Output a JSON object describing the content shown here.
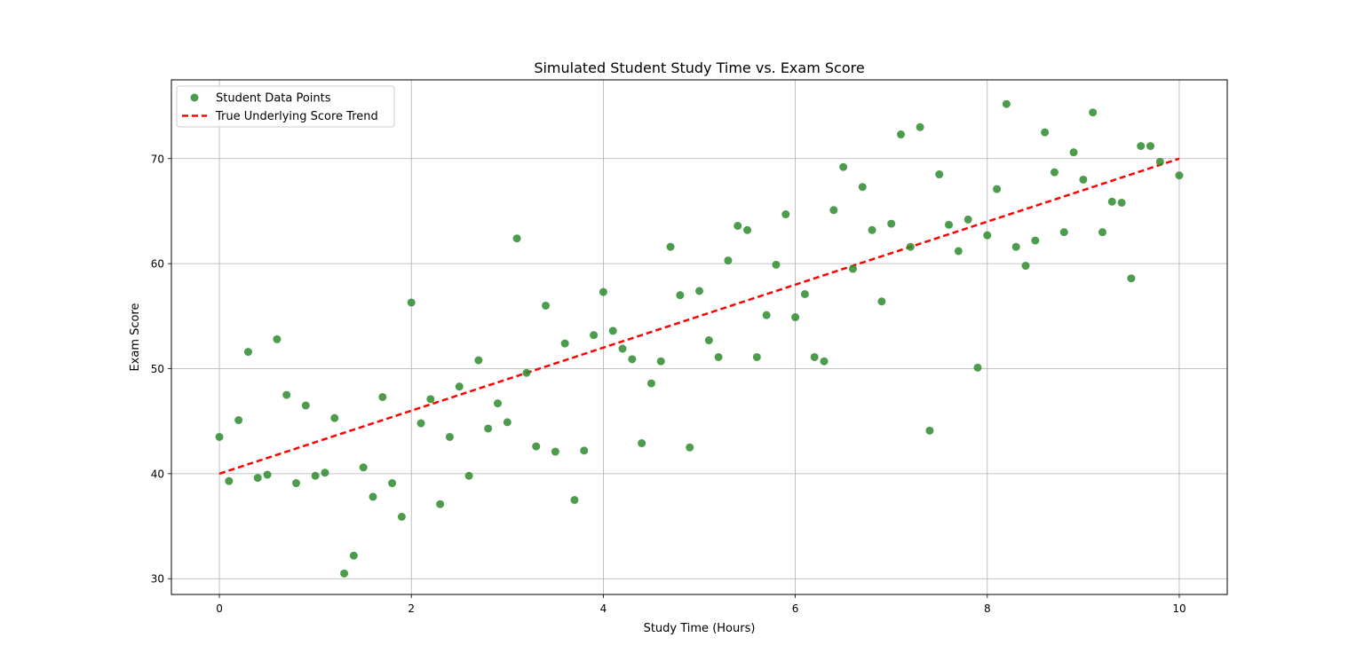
{
  "chart_data": {
    "type": "scatter",
    "title": "Simulated Student Study Time vs. Exam Score",
    "xlabel": "Study Time (Hours)",
    "ylabel": "Exam Score",
    "xlim": [
      -0.5,
      10.5
    ],
    "ylim": [
      28.5,
      77.5
    ],
    "xticks": [
      0,
      2,
      4,
      6,
      8,
      10
    ],
    "yticks": [
      30,
      40,
      50,
      60,
      70
    ],
    "grid": true,
    "legend_position": "top-left",
    "series": [
      {
        "name": "Student Data Points",
        "kind": "scatter",
        "color": "#2e8b2e",
        "points": [
          [
            0.0,
            43.5
          ],
          [
            0.1,
            39.3
          ],
          [
            0.2,
            45.1
          ],
          [
            0.3,
            51.6
          ],
          [
            0.4,
            39.6
          ],
          [
            0.5,
            39.9
          ],
          [
            0.6,
            52.8
          ],
          [
            0.7,
            47.5
          ],
          [
            0.8,
            39.1
          ],
          [
            0.9,
            46.5
          ],
          [
            1.0,
            39.8
          ],
          [
            1.1,
            40.1
          ],
          [
            1.2,
            45.3
          ],
          [
            1.3,
            30.5
          ],
          [
            1.4,
            32.2
          ],
          [
            1.5,
            40.6
          ],
          [
            1.6,
            37.8
          ],
          [
            1.7,
            47.3
          ],
          [
            1.8,
            39.1
          ],
          [
            1.9,
            35.9
          ],
          [
            2.0,
            56.3
          ],
          [
            2.1,
            44.8
          ],
          [
            2.2,
            47.1
          ],
          [
            2.3,
            37.1
          ],
          [
            2.4,
            43.5
          ],
          [
            2.5,
            48.3
          ],
          [
            2.6,
            39.8
          ],
          [
            2.7,
            50.8
          ],
          [
            2.8,
            44.3
          ],
          [
            2.9,
            46.7
          ],
          [
            3.0,
            44.9
          ],
          [
            3.1,
            62.4
          ],
          [
            3.2,
            49.6
          ],
          [
            3.3,
            42.6
          ],
          [
            3.4,
            56.0
          ],
          [
            3.5,
            42.1
          ],
          [
            3.6,
            52.4
          ],
          [
            3.7,
            37.5
          ],
          [
            3.8,
            42.2
          ],
          [
            3.9,
            53.2
          ],
          [
            4.0,
            57.3
          ],
          [
            4.1,
            53.6
          ],
          [
            4.2,
            51.9
          ],
          [
            4.3,
            50.9
          ],
          [
            4.4,
            42.9
          ],
          [
            4.5,
            48.6
          ],
          [
            4.6,
            50.7
          ],
          [
            4.7,
            61.6
          ],
          [
            4.8,
            57.0
          ],
          [
            4.9,
            42.5
          ],
          [
            5.0,
            57.4
          ],
          [
            5.1,
            52.7
          ],
          [
            5.2,
            51.1
          ],
          [
            5.3,
            60.3
          ],
          [
            5.4,
            63.6
          ],
          [
            5.5,
            63.2
          ],
          [
            5.6,
            51.1
          ],
          [
            5.7,
            55.1
          ],
          [
            5.8,
            59.9
          ],
          [
            5.9,
            64.7
          ],
          [
            6.0,
            54.9
          ],
          [
            6.1,
            57.1
          ],
          [
            6.2,
            51.1
          ],
          [
            6.3,
            50.7
          ],
          [
            6.4,
            65.1
          ],
          [
            6.5,
            69.2
          ],
          [
            6.6,
            59.5
          ],
          [
            6.7,
            67.3
          ],
          [
            6.8,
            63.2
          ],
          [
            6.9,
            56.4
          ],
          [
            7.0,
            63.8
          ],
          [
            7.1,
            72.3
          ],
          [
            7.2,
            61.6
          ],
          [
            7.3,
            73.0
          ],
          [
            7.4,
            44.1
          ],
          [
            7.5,
            68.5
          ],
          [
            7.6,
            63.7
          ],
          [
            7.7,
            61.2
          ],
          [
            7.8,
            64.2
          ],
          [
            7.9,
            50.1
          ],
          [
            8.0,
            62.7
          ],
          [
            8.1,
            67.1
          ],
          [
            8.2,
            75.2
          ],
          [
            8.3,
            61.6
          ],
          [
            8.4,
            59.8
          ],
          [
            8.5,
            62.2
          ],
          [
            8.6,
            72.5
          ],
          [
            8.7,
            68.7
          ],
          [
            8.8,
            63.0
          ],
          [
            8.9,
            70.6
          ],
          [
            9.0,
            68.0
          ],
          [
            9.1,
            74.4
          ],
          [
            9.2,
            63.0
          ],
          [
            9.3,
            65.9
          ],
          [
            9.4,
            65.8
          ],
          [
            9.5,
            58.6
          ],
          [
            9.6,
            71.2
          ],
          [
            9.7,
            71.2
          ],
          [
            9.8,
            69.7
          ],
          [
            10.0,
            68.4
          ]
        ]
      },
      {
        "name": "True Underlying Score Trend",
        "kind": "line",
        "style": "dashed",
        "color": "#ff0000",
        "points": [
          [
            0,
            40
          ],
          [
            10,
            70
          ]
        ]
      }
    ]
  }
}
